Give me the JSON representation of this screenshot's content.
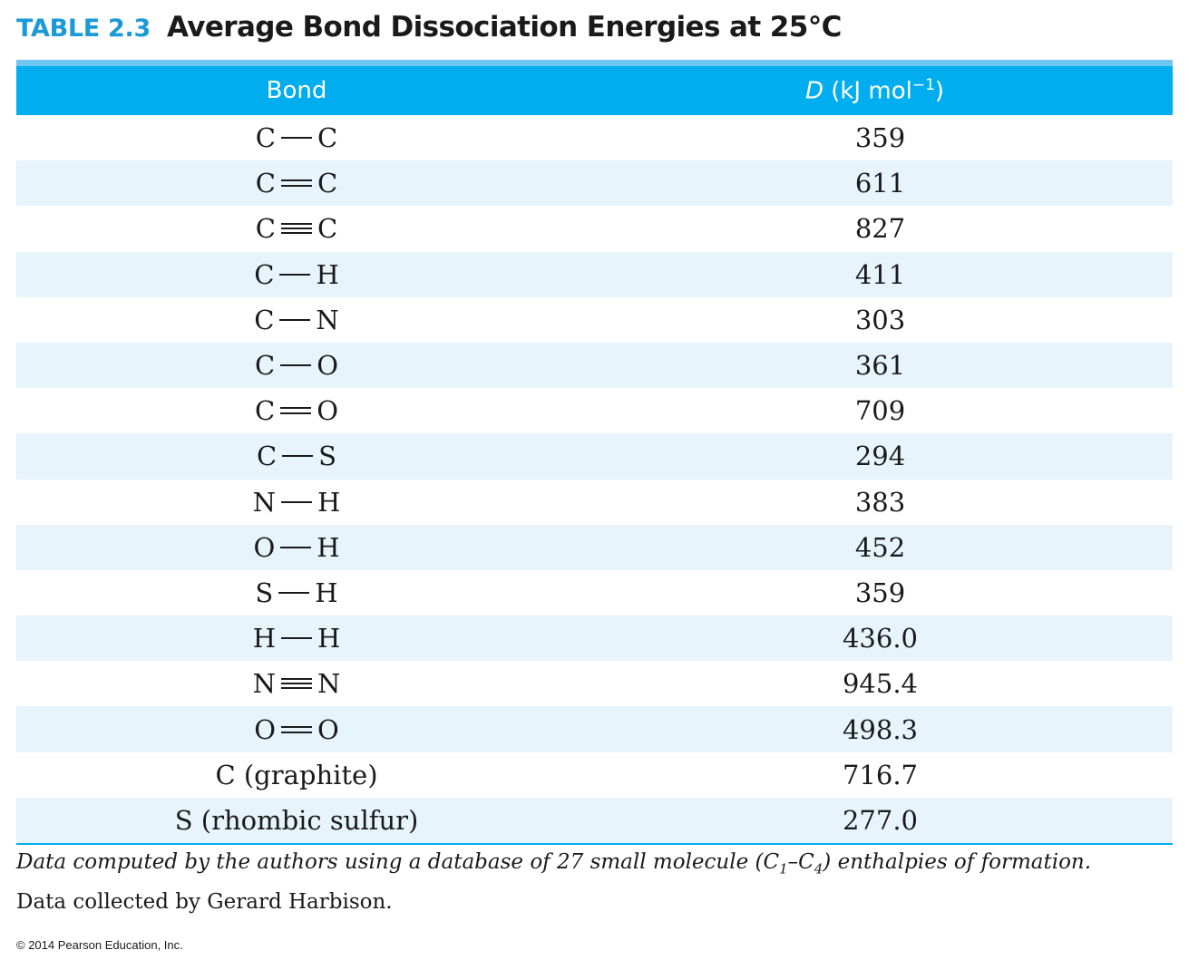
{
  "title": {
    "number": "TABLE 2.3",
    "text": "Average Bond Dissociation Energies at 25°C"
  },
  "table": {
    "headers": {
      "bond": "Bond",
      "energy_symbol": "D",
      "energy_unit": " (kJ mol",
      "energy_exp": "−1",
      "energy_close": ")"
    },
    "rows": [
      {
        "a": "C",
        "bond": "single",
        "b": "C",
        "value": "359"
      },
      {
        "a": "C",
        "bond": "double",
        "b": "C",
        "value": "611"
      },
      {
        "a": "C",
        "bond": "triple",
        "b": "C",
        "value": "827"
      },
      {
        "a": "C",
        "bond": "single",
        "b": "H",
        "value": "411"
      },
      {
        "a": "C",
        "bond": "single",
        "b": "N",
        "value": "303"
      },
      {
        "a": "C",
        "bond": "single",
        "b": "O",
        "value": "361"
      },
      {
        "a": "C",
        "bond": "double",
        "b": "O",
        "value": "709"
      },
      {
        "a": "C",
        "bond": "single",
        "b": "S",
        "value": "294"
      },
      {
        "a": "N",
        "bond": "single",
        "b": "H",
        "value": "383"
      },
      {
        "a": "O",
        "bond": "single",
        "b": "H",
        "value": "452"
      },
      {
        "a": "S",
        "bond": "single",
        "b": "H",
        "value": "359"
      },
      {
        "a": "H",
        "bond": "single",
        "b": "H",
        "value": "436.0"
      },
      {
        "a": "N",
        "bond": "triple",
        "b": "N",
        "value": "945.4"
      },
      {
        "a": "O",
        "bond": "double",
        "b": "O",
        "value": "498.3"
      },
      {
        "label": "C (graphite)",
        "value": "716.7"
      },
      {
        "label": "S (rhombic sulfur)",
        "value": "277.0"
      }
    ]
  },
  "notes": {
    "line1_prefix": "Data computed by the authors using a database of 27 small molecule (C",
    "line1_sub1": "1",
    "line1_mid": "–C",
    "line1_sub2": "4",
    "line1_suffix": ") enthalpies of formation.",
    "line2": "Data collected by Gerard Harbison."
  },
  "copyright": "© 2014 Pearson Education, Inc.",
  "colors": {
    "accent": "#00aeef",
    "title_number": "#1a9ad6",
    "row_alt": "#e7f4fc"
  }
}
